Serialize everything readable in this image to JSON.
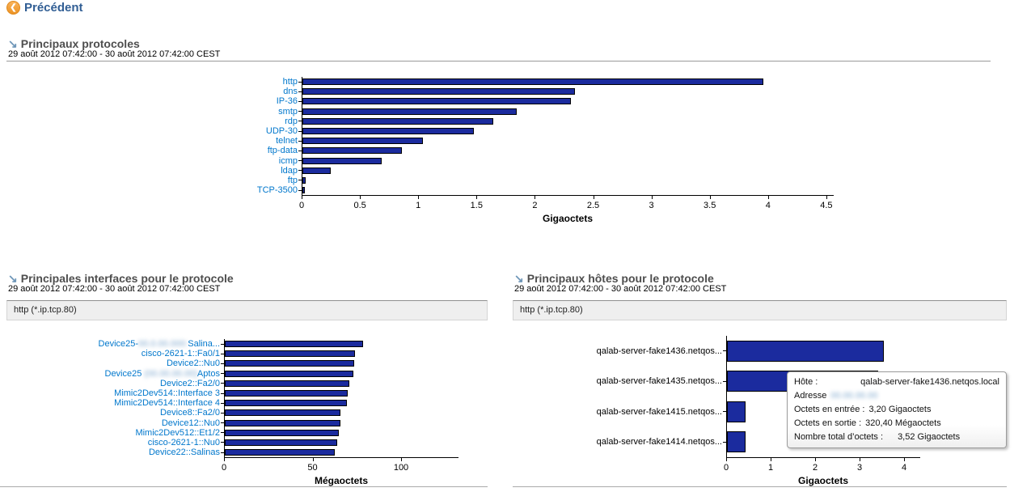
{
  "header": {
    "back_label": "Précédent"
  },
  "icons": {
    "back": "❮",
    "section_arrow": "↘"
  },
  "colors": {
    "bar": "#1B2B9E",
    "bar_border": "#000000",
    "link_label": "#0077CC",
    "section_title": "#4E4E4E",
    "back_link": "#315E94",
    "back_icon_bg": "#F5A33B",
    "section_arrow": "#6E96B8"
  },
  "sections": {
    "protocols": {
      "title": "Principaux protocoles",
      "period": "29 août 2012 07:42:00 - 30 août 2012 07:42:00 CEST"
    },
    "interfaces": {
      "title": "Principales interfaces pour le protocole",
      "period": "29 août 2012 07:42:00 - 30 août 2012 07:42:00 CEST",
      "filter": "http (*.ip.tcp.80)"
    },
    "hosts": {
      "title": "Principaux hôtes pour le protocole",
      "period": "29 août 2012 07:42:00 - 30 août 2012 07:42:00 CEST",
      "filter": "http (*.ip.tcp.80)"
    }
  },
  "chart_data": [
    {
      "type": "bar",
      "orientation": "horizontal",
      "title": "Principaux protocoles",
      "unit": "Gigaoctets",
      "xlabel": "Gigaoctets",
      "xlim": [
        0,
        4.5
      ],
      "xtick_labels": [
        "0",
        "0.5",
        "1",
        "1.5",
        "2",
        "2.5",
        "3",
        "3.5",
        "4",
        "4.5"
      ],
      "labels_are_links": true,
      "categories": [
        "http",
        "dns",
        "IP-36",
        "smtp",
        "rdp",
        "UDP-30",
        "telnet",
        "ftp-data",
        "icmp",
        "ldap",
        "ftp",
        "TCP-3500"
      ],
      "values": [
        3.95,
        2.34,
        2.3,
        1.84,
        1.64,
        1.47,
        1.03,
        0.85,
        0.68,
        0.24,
        0.03,
        0.02
      ]
    },
    {
      "type": "bar",
      "orientation": "horizontal",
      "title": "Principales interfaces pour le protocole",
      "unit": "Mégaoctets",
      "xlabel": "Mégaoctets",
      "xlim": [
        0,
        100
      ],
      "xtick_labels": [
        "0",
        "50",
        "100"
      ],
      "labels_are_links": true,
      "categories": [
        [
          {
            "t": "Device25-"
          },
          {
            "t": "00.0.00.000:",
            "blur": true
          },
          {
            "t": "Salina..."
          }
        ],
        "cisco-2621-1::Fa0/1",
        "Device2::Nu0",
        [
          {
            "t": "Device25 "
          },
          {
            "t": "(00.00.00.00)",
            "blur": true
          },
          {
            "t": "Aptos"
          }
        ],
        "Device2::Fa2/0",
        "Mimic2Dev514::Interface 3",
        "Mimic2Dev514::Interface 4",
        "Device8::Fa2/0",
        "Device12::Nu0",
        "Mimic2Dev512::Et1/2",
        "cisco-2621-1::Nu0",
        "Device22::Salinas"
      ],
      "values": [
        78,
        73.5,
        73,
        72.5,
        70.5,
        69.5,
        69,
        65.5,
        65.5,
        64.5,
        63.5,
        62
      ]
    },
    {
      "type": "bar",
      "orientation": "horizontal",
      "title": "Principaux hôtes pour le protocole",
      "unit": "Gigaoctets",
      "xlabel": "Gigaoctets",
      "xlim": [
        0,
        4
      ],
      "xtick_labels": [
        "0",
        "1",
        "2",
        "3",
        "4"
      ],
      "labels_are_links": false,
      "categories": [
        "qalab-server-fake1436.netqos...",
        "qalab-server-fake1435.netqos...",
        "qalab-server-fake1415.netqos...",
        "qalab-server-fake1414.netqos..."
      ],
      "values": [
        3.52,
        3.4,
        0.42,
        0.42
      ]
    }
  ],
  "tooltip": {
    "host_label": "Hôte :",
    "host_value": "qalab-server-fake1436.netqos.local",
    "address_label": "Adresse",
    "address_value_redacted": "00.00.00.00",
    "in_label": "Octets en entrée :",
    "in_value": "3,20 Gigaoctets",
    "out_label": "Octets en sortie :",
    "out_value": "320,40 Mégaoctets",
    "total_label": "Nombre total d’octets :",
    "total_value": "3,52 Gigaoctets"
  }
}
